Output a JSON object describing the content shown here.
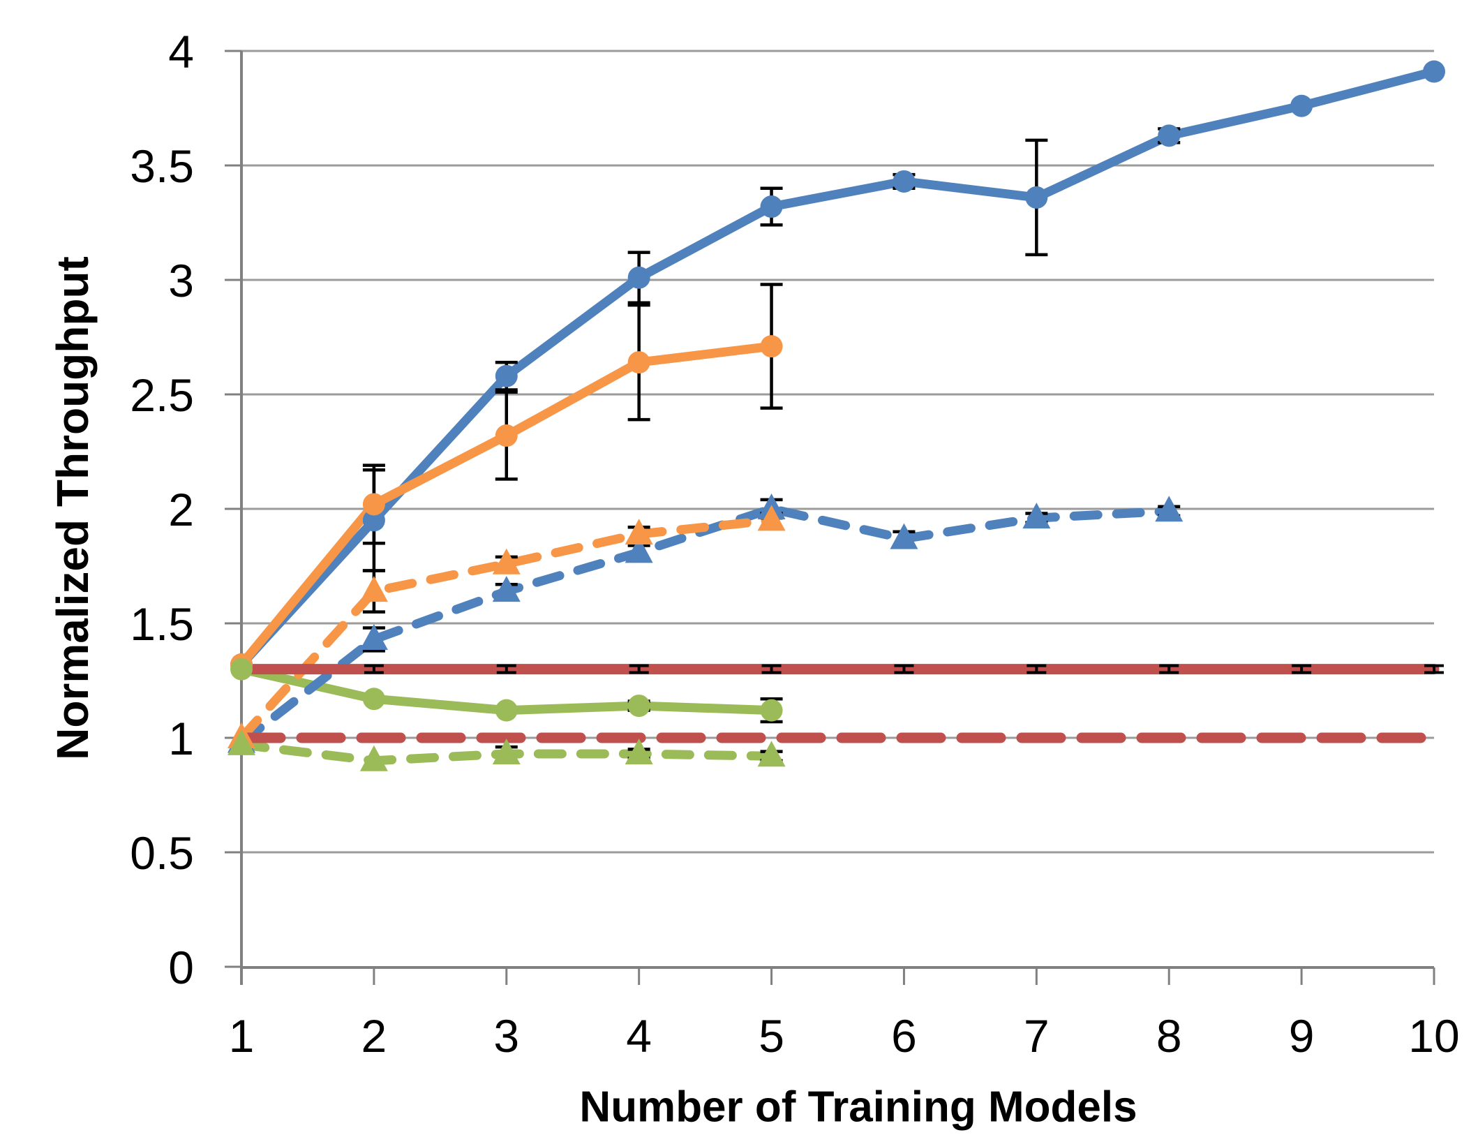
{
  "chart_data": {
    "type": "line",
    "title": "",
    "xlabel": "Number of Training Models",
    "ylabel": "Normalized Throughput",
    "x_tick_labels": [
      "1",
      "2",
      "3",
      "4",
      "5",
      "6",
      "7",
      "8",
      "9",
      "10"
    ],
    "y_tick_labels": [
      "0",
      "0.5",
      "1",
      "1.5",
      "2",
      "2.5",
      "3",
      "3.5",
      "4"
    ],
    "y_ticks": [
      0,
      0.5,
      1,
      1.5,
      2,
      2.5,
      3,
      3.5,
      4
    ],
    "xlim": [
      1,
      10
    ],
    "ylim": [
      0,
      4
    ],
    "grid": "horizontal",
    "legend": "none",
    "colors": {
      "blue": "#4F81BD",
      "orange": "#F79646",
      "green": "#9BBB59",
      "red": "#C0504D",
      "gridline": "#9B9B9B",
      "axis": "#808080",
      "error_bar": "#000000"
    },
    "series": [
      {
        "name": "blue-solid-circle",
        "color": "#4F81BD",
        "dash": "solid",
        "marker": "circle",
        "x": [
          1,
          2,
          3,
          4,
          5,
          6,
          7,
          8,
          9,
          10
        ],
        "values": [
          1.32,
          1.95,
          2.58,
          3.01,
          3.32,
          3.43,
          3.36,
          3.63,
          3.76,
          3.91
        ],
        "errors": [
          0,
          0.22,
          0.06,
          0.11,
          0.08,
          0.03,
          0.25,
          0.03,
          0,
          0
        ]
      },
      {
        "name": "orange-solid-circle",
        "color": "#F79646",
        "dash": "solid",
        "marker": "circle",
        "x": [
          1,
          2,
          3,
          4,
          5
        ],
        "values": [
          1.32,
          2.02,
          2.32,
          2.64,
          2.71
        ],
        "errors": [
          0,
          0.17,
          0.19,
          0.25,
          0.27
        ]
      },
      {
        "name": "green-solid-circle",
        "color": "#9BBB59",
        "dash": "solid",
        "marker": "circle",
        "x": [
          1,
          2,
          3,
          4,
          5
        ],
        "values": [
          1.3,
          1.17,
          1.12,
          1.14,
          1.12
        ],
        "errors": [
          0,
          0,
          0,
          0.02,
          0.05
        ]
      },
      {
        "name": "blue-dashed-triangle",
        "color": "#4F81BD",
        "dash": "dashed",
        "marker": "triangle",
        "x": [
          1,
          2,
          3,
          4,
          5,
          6,
          7,
          8
        ],
        "values": [
          0.98,
          1.43,
          1.64,
          1.81,
          2.0,
          1.87,
          1.96,
          1.99
        ],
        "errors": [
          0,
          0.05,
          0.03,
          0.03,
          0.04,
          0.03,
          0.02,
          0.02
        ]
      },
      {
        "name": "orange-dashed-triangle",
        "color": "#F79646",
        "dash": "dashed",
        "marker": "triangle",
        "x": [
          1,
          2,
          3,
          4,
          5
        ],
        "values": [
          1.0,
          1.64,
          1.76,
          1.89,
          1.95
        ],
        "errors": [
          0,
          0.09,
          0.03,
          0.03,
          0.03
        ]
      },
      {
        "name": "green-dashed-triangle",
        "color": "#9BBB59",
        "dash": "dashed",
        "marker": "triangle",
        "x": [
          1,
          2,
          3,
          4,
          5
        ],
        "values": [
          0.97,
          0.9,
          0.93,
          0.93,
          0.92
        ],
        "errors": [
          0,
          0,
          0.03,
          0.02,
          0.02
        ]
      },
      {
        "name": "red-solid-baseline",
        "color": "#C0504D",
        "dash": "solid",
        "marker": "none",
        "x": [
          1,
          2,
          3,
          4,
          5,
          6,
          7,
          8,
          9,
          10
        ],
        "values": [
          1.3,
          1.3,
          1.3,
          1.3,
          1.3,
          1.3,
          1.3,
          1.3,
          1.3,
          1.3
        ],
        "errors": [
          0.015,
          0.015,
          0.015,
          0.015,
          0.015,
          0.015,
          0.015,
          0.015,
          0.015,
          0.015
        ]
      },
      {
        "name": "red-dashed-baseline",
        "color": "#C0504D",
        "dash": "long-dashed",
        "marker": "none",
        "x": [
          1,
          2,
          3,
          4,
          5,
          6,
          7,
          8,
          9,
          10
        ],
        "values": [
          1.0,
          1.0,
          1.0,
          1.0,
          1.0,
          1.0,
          1.0,
          1.0,
          1.0,
          1.0
        ],
        "errors": [
          0,
          0,
          0,
          0,
          0,
          0,
          0,
          0,
          0,
          0
        ]
      }
    ]
  }
}
